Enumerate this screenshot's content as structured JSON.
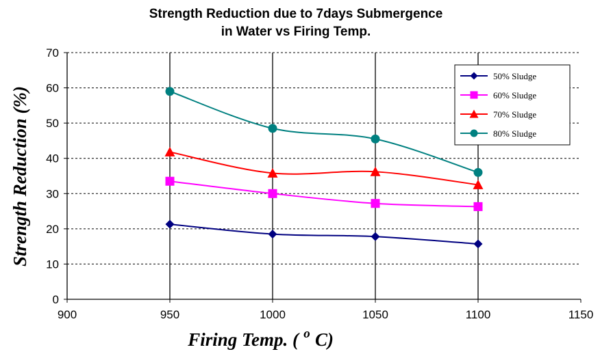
{
  "chart_data": {
    "type": "line",
    "title_line1": "Strength Reduction due to 7days Submergence",
    "title_line2": "in Water vs Firing Temp.",
    "xlabel": "Firing Temp. (",
    "xlabel_degree": "o",
    "xlabel_unit": "C)",
    "ylabel": "Strength Reduction (%)",
    "xlim": [
      900,
      1150
    ],
    "ylim": [
      0,
      70
    ],
    "x_ticks": [
      900,
      950,
      1000,
      1050,
      1100,
      1150
    ],
    "y_ticks": [
      0,
      10,
      20,
      30,
      40,
      50,
      60,
      70
    ],
    "grid": {
      "vertical": "solid",
      "horizontal": "dashed"
    },
    "legend_position": "top-right",
    "x": [
      950,
      1000,
      1050,
      1100
    ],
    "series": [
      {
        "name": "50% Sludge",
        "values": [
          21.3,
          18.5,
          17.8,
          15.7
        ],
        "color": "#000080",
        "marker": "diamond"
      },
      {
        "name": "60% Sludge",
        "values": [
          33.5,
          30.0,
          27.2,
          26.3
        ],
        "color": "#FF00FF",
        "marker": "square"
      },
      {
        "name": "70% Sludge",
        "values": [
          41.8,
          35.8,
          36.2,
          32.5
        ],
        "color": "#FF0000",
        "marker": "triangle"
      },
      {
        "name": "80% Sludge",
        "values": [
          59.0,
          48.5,
          45.5,
          36.0
        ],
        "color": "#008080",
        "marker": "circle"
      }
    ]
  }
}
